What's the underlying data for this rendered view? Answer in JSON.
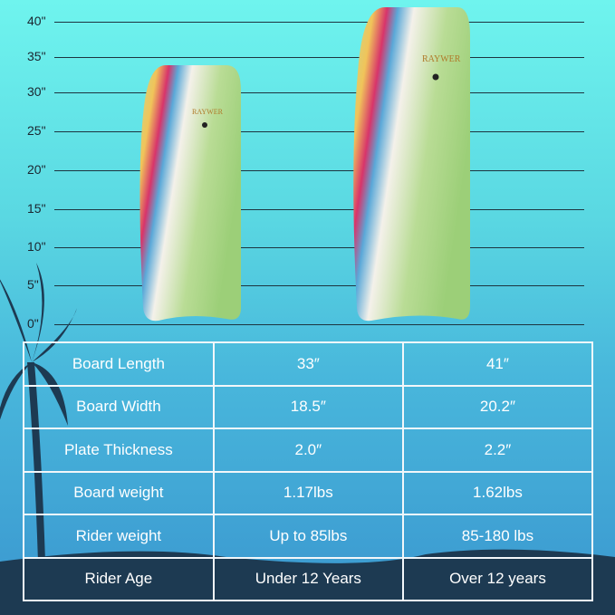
{
  "ruler": {
    "ticks": [
      "40\"",
      "35\"",
      "30\"",
      "25\"",
      "20\"",
      "15\"",
      "10\"",
      "5\"",
      "0\""
    ]
  },
  "boards": [
    {
      "brand": "RAYWER",
      "length_in": 33
    },
    {
      "brand": "RAYWER",
      "length_in": 41
    }
  ],
  "table": {
    "rows": [
      [
        "Board Length",
        "33″",
        "41″"
      ],
      [
        "Board Width",
        "18.5″",
        "20.2″"
      ],
      [
        "Plate Thickness",
        "2.0″",
        "2.2″"
      ],
      [
        "Board weight",
        "1.17lbs",
        "1.62lbs"
      ],
      [
        "Rider weight",
        "Up to 85lbs",
        "85-180 lbs"
      ],
      [
        "Rider Age",
        "Under 12 Years",
        "Over 12 years"
      ]
    ]
  },
  "colors": {
    "navy": "#1d3a52",
    "sky_top": "#6ff4ee",
    "sky_bottom": "#3a96cf"
  }
}
